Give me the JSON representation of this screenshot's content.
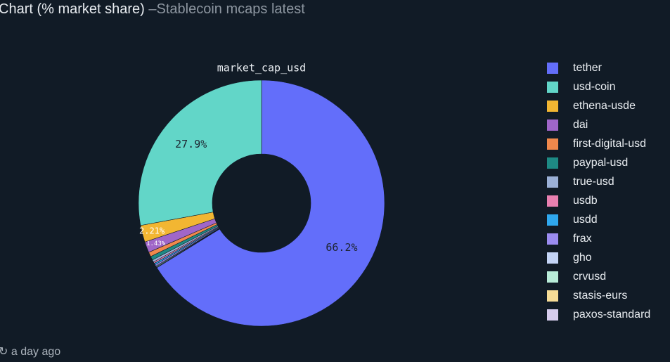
{
  "chart_data": {
    "type": "pie",
    "title": "Chart (% market share)",
    "subtitle": "–Stablecoin mcaps latest",
    "chart_title": "market_cap_usd",
    "footer": "a day ago",
    "categories": [
      "tether",
      "usd-coin",
      "ethena-usde",
      "dai",
      "first-digital-usd",
      "paypal-usd",
      "true-usd",
      "usdb",
      "usdd",
      "frax",
      "gho",
      "crvusd",
      "stasis-eurs",
      "paxos-standard"
    ],
    "values": [
      66.2,
      27.9,
      2.21,
      1.43,
      0.6,
      0.5,
      0.3,
      0.2,
      0.2,
      0.2,
      0.1,
      0.1,
      0.02,
      0.03
    ],
    "value_labels": [
      "66.2%",
      "27.9%",
      "2.21%",
      "1.43%",
      null,
      null,
      null,
      null,
      null,
      null,
      null,
      null,
      null,
      null
    ],
    "colors": [
      "#636efa",
      "#62d6c8",
      "#f2b632",
      "#a066c8",
      "#f0884c",
      "#1e8a84",
      "#9bb0d6",
      "#e880b0",
      "#2fa8ee",
      "#9b8cf0",
      "#c4d4f6",
      "#b8ecd8",
      "#f6dc96",
      "#d6ccec"
    ],
    "hole": 0.4
  }
}
